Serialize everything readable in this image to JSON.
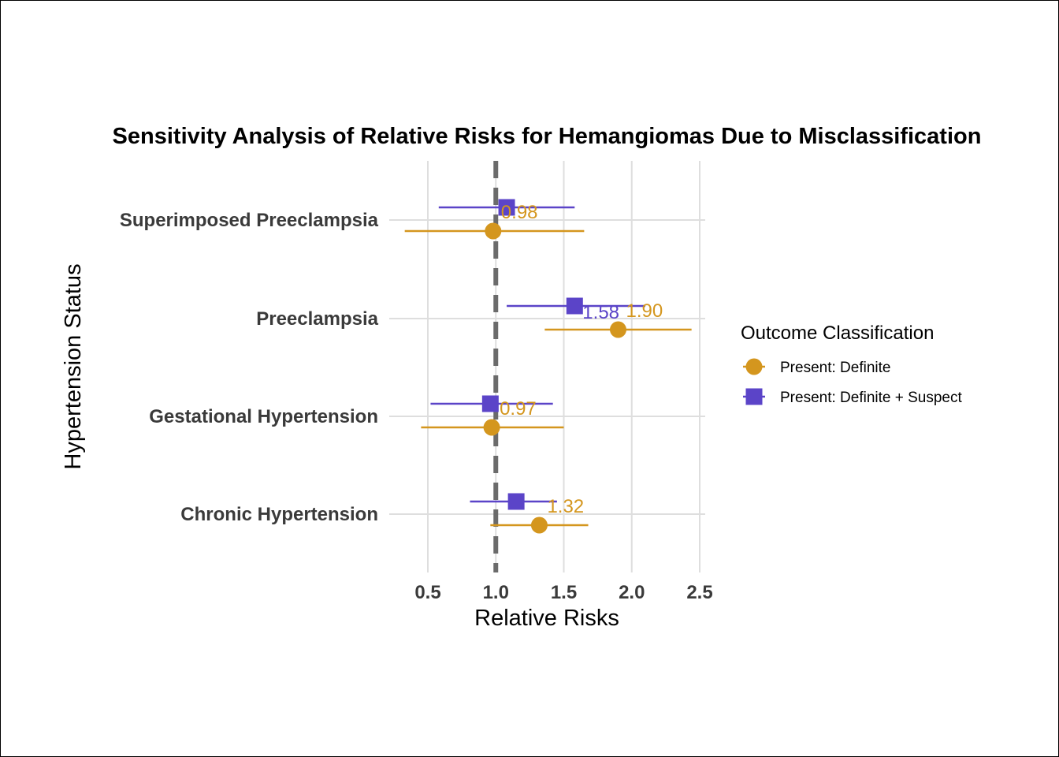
{
  "chart_data": {
    "type": "scatter",
    "title": "Sensitivity Analysis of Relative Risks for Hemangiomas Due to Misclassification",
    "xlabel": "Relative Risks",
    "ylabel": "Hypertension Status",
    "xlim": [
      0.5,
      2.5
    ],
    "xticks": [
      "0.5",
      "1.0",
      "1.5",
      "2.0",
      "2.5"
    ],
    "categories": [
      "Superimposed Preeclampsia",
      "Preeclampsia",
      "Gestational Hypertension",
      "Chronic Hypertension"
    ],
    "reference_line": 1.0,
    "grid": true,
    "legend_title": "Outcome Classification",
    "legend_position": "right",
    "series": [
      {
        "name": "Present: Definite",
        "color": "#D4961E",
        "marker": "circle",
        "points": [
          {
            "category": "Superimposed Preeclampsia",
            "value": 0.98,
            "lower": 0.33,
            "upper": 1.65,
            "label": "0.98"
          },
          {
            "category": "Preeclampsia",
            "value": 1.9,
            "lower": 1.36,
            "upper": 2.44,
            "label": "1.90"
          },
          {
            "category": "Gestational Hypertension",
            "value": 0.97,
            "lower": 0.45,
            "upper": 1.5,
            "label": "0.97"
          },
          {
            "category": "Chronic Hypertension",
            "value": 1.32,
            "lower": 0.96,
            "upper": 1.68,
            "label": "1.32"
          }
        ]
      },
      {
        "name": "Present: Definite + Suspect",
        "color": "#5B44C8",
        "marker": "square",
        "points": [
          {
            "category": "Superimposed Preeclampsia",
            "value": 1.08,
            "lower": 0.58,
            "upper": 1.58,
            "label": ""
          },
          {
            "category": "Preeclampsia",
            "value": 1.58,
            "lower": 1.08,
            "upper": 2.1,
            "label": "1.58"
          },
          {
            "category": "Gestational Hypertension",
            "value": 0.96,
            "lower": 0.52,
            "upper": 1.42,
            "label": ""
          },
          {
            "category": "Chronic Hypertension",
            "value": 1.15,
            "lower": 0.81,
            "upper": 1.45,
            "label": ""
          }
        ]
      }
    ]
  }
}
